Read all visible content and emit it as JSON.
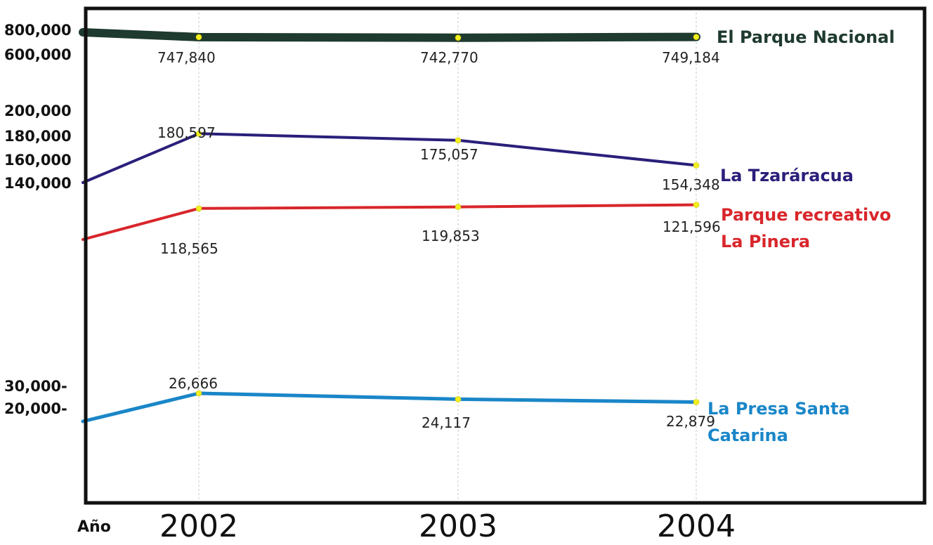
{
  "chart_data": {
    "type": "line",
    "xlabel": "Año",
    "categories": [
      "2002",
      "2003",
      "2004"
    ],
    "y_tick_labels": [
      "800,000",
      "600,000",
      "200,000",
      "180,000",
      "160,000",
      "140,000",
      "30,000-",
      "20,000-"
    ],
    "grid": "vertical dashed lines at each year",
    "legend": "series names printed at right end of each line",
    "series": [
      {
        "name": "El Parque Nacional",
        "color": "#1f3a2e",
        "values": [
          747840,
          742770,
          749184
        ],
        "labels": [
          "747,840",
          "742,770",
          "749,184"
        ]
      },
      {
        "name": "La Tzaráracua",
        "color": "#2a1f7a",
        "values": [
          180597,
          175057,
          154348
        ],
        "labels": [
          "180,597",
          "175,057",
          "154,348"
        ]
      },
      {
        "name_lines": [
          "Parque recreativo",
          "La Pinera"
        ],
        "color": "#d8262b",
        "values": [
          118565,
          119853,
          121596
        ],
        "labels": [
          "118,565",
          "119,853",
          "121,596"
        ]
      },
      {
        "name_lines": [
          "La Presa Santa",
          "Catarina"
        ],
        "color": "#1a86c8",
        "values": [
          26666,
          24117,
          22879
        ],
        "labels": [
          "26,666",
          "24,117",
          "22,879"
        ]
      }
    ]
  }
}
